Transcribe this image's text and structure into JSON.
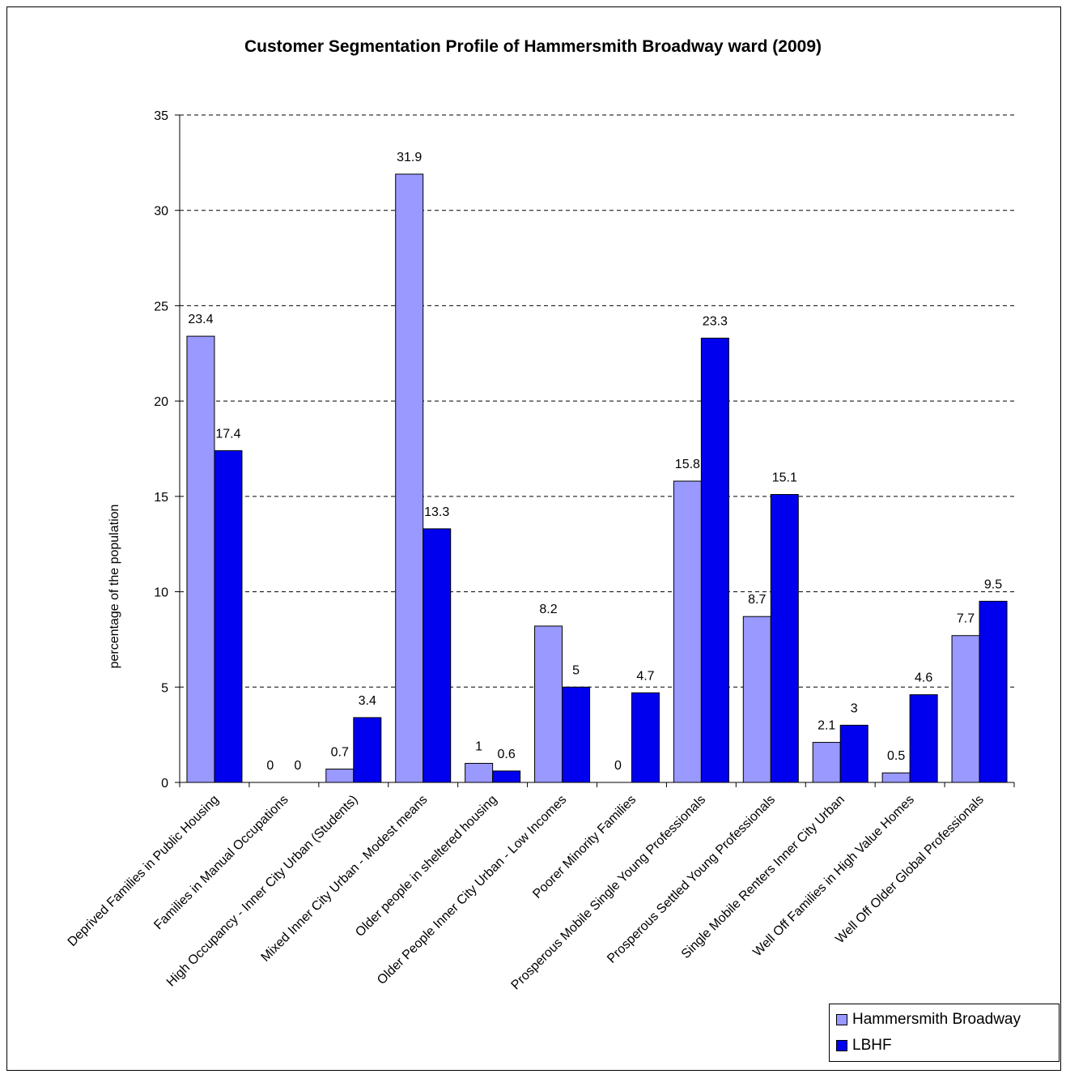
{
  "chart_data": {
    "type": "bar",
    "title": "Customer Segmentation Profile of Hammersmith Broadway ward (2009)",
    "ylabel": "percentage of the population",
    "xlabel": "",
    "ylim": [
      0,
      35
    ],
    "yticks": [
      0,
      5,
      10,
      15,
      20,
      25,
      30,
      35
    ],
    "grid": true,
    "legend_position": "bottom-right",
    "categories": [
      "Deprived Families in Public Housing",
      "Families in Manual Occupations",
      "High Occupancy - Inner City Urban (Students)",
      "Mixed Inner City Urban - Modest means",
      "Older people in sheltered housing",
      "Older People Inner City Urban - Low Incomes",
      "Poorer Minority Families",
      "Prosperous Mobile Single Young Professionals",
      "Prosperous Settled Young Professionals",
      "Single Mobile Renters Inner City Urban",
      "Well Off Families in High Value Homes",
      "Well Off Older Global Professionals"
    ],
    "series": [
      {
        "name": "Hammersmith Broadway",
        "color": "#9999ff",
        "values": [
          23.4,
          0,
          0.7,
          31.9,
          1,
          8.2,
          0,
          15.8,
          8.7,
          2.1,
          0.5,
          7.7
        ]
      },
      {
        "name": "LBHF",
        "color": "#0000ee",
        "values": [
          17.4,
          0,
          3.4,
          13.3,
          0.6,
          5,
          4.7,
          23.3,
          15.1,
          3,
          4.6,
          9.5
        ]
      }
    ]
  }
}
